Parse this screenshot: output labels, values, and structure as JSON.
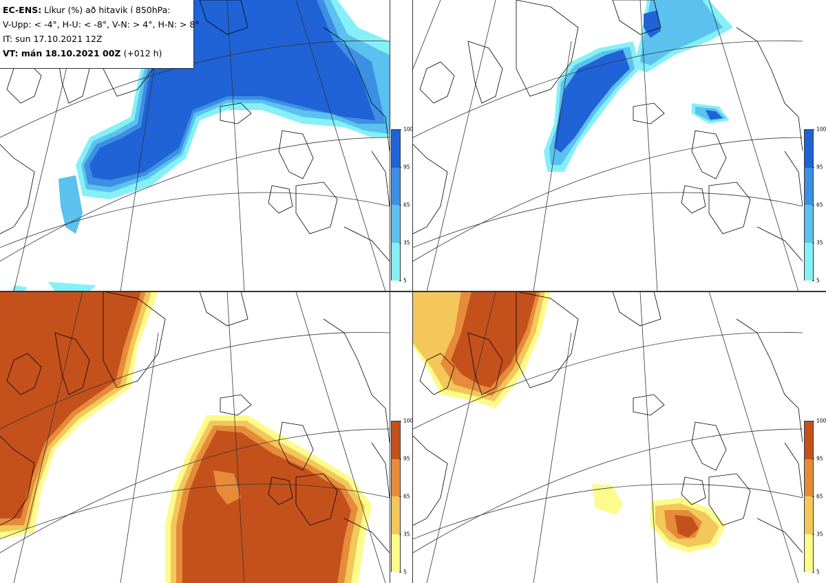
{
  "header": {
    "line1_bold": "EC-ENS:",
    "line1_rest": " Líkur (%) að hitavik í 850hPa:",
    "line2": "V-Upp: < -4°, H-U: < -8°, V-N: > 4°, H-N: > 8°",
    "line3": "IT: sun 17.10.2021 12Z",
    "line4_bold": "VT: mán 18.10.2021 00Z",
    "line4_rest": " (+012 h)"
  },
  "panels": [
    {
      "id": "V-Upp",
      "variable": "cold anomaly < -4°",
      "scheme": "blue"
    },
    {
      "id": "H-U",
      "variable": "cold anomaly < -8°",
      "scheme": "blue"
    },
    {
      "id": "V-N",
      "variable": "warm anomaly > 4°",
      "scheme": "orange"
    },
    {
      "id": "H-N",
      "variable": "warm anomaly > 8°",
      "scheme": "orange"
    }
  ],
  "colorbar": {
    "ticks": [
      "100",
      "95",
      "65",
      "35",
      "5"
    ],
    "blue": [
      "#1f63d6",
      "#3c8fe3",
      "#5bc1ee",
      "#86f0f7"
    ],
    "orange": [
      "#c4511c",
      "#e58b3a",
      "#f3c75a",
      "#fdfb8c"
    ]
  },
  "colors": {
    "coast": "#000000",
    "grid": "#333333"
  }
}
